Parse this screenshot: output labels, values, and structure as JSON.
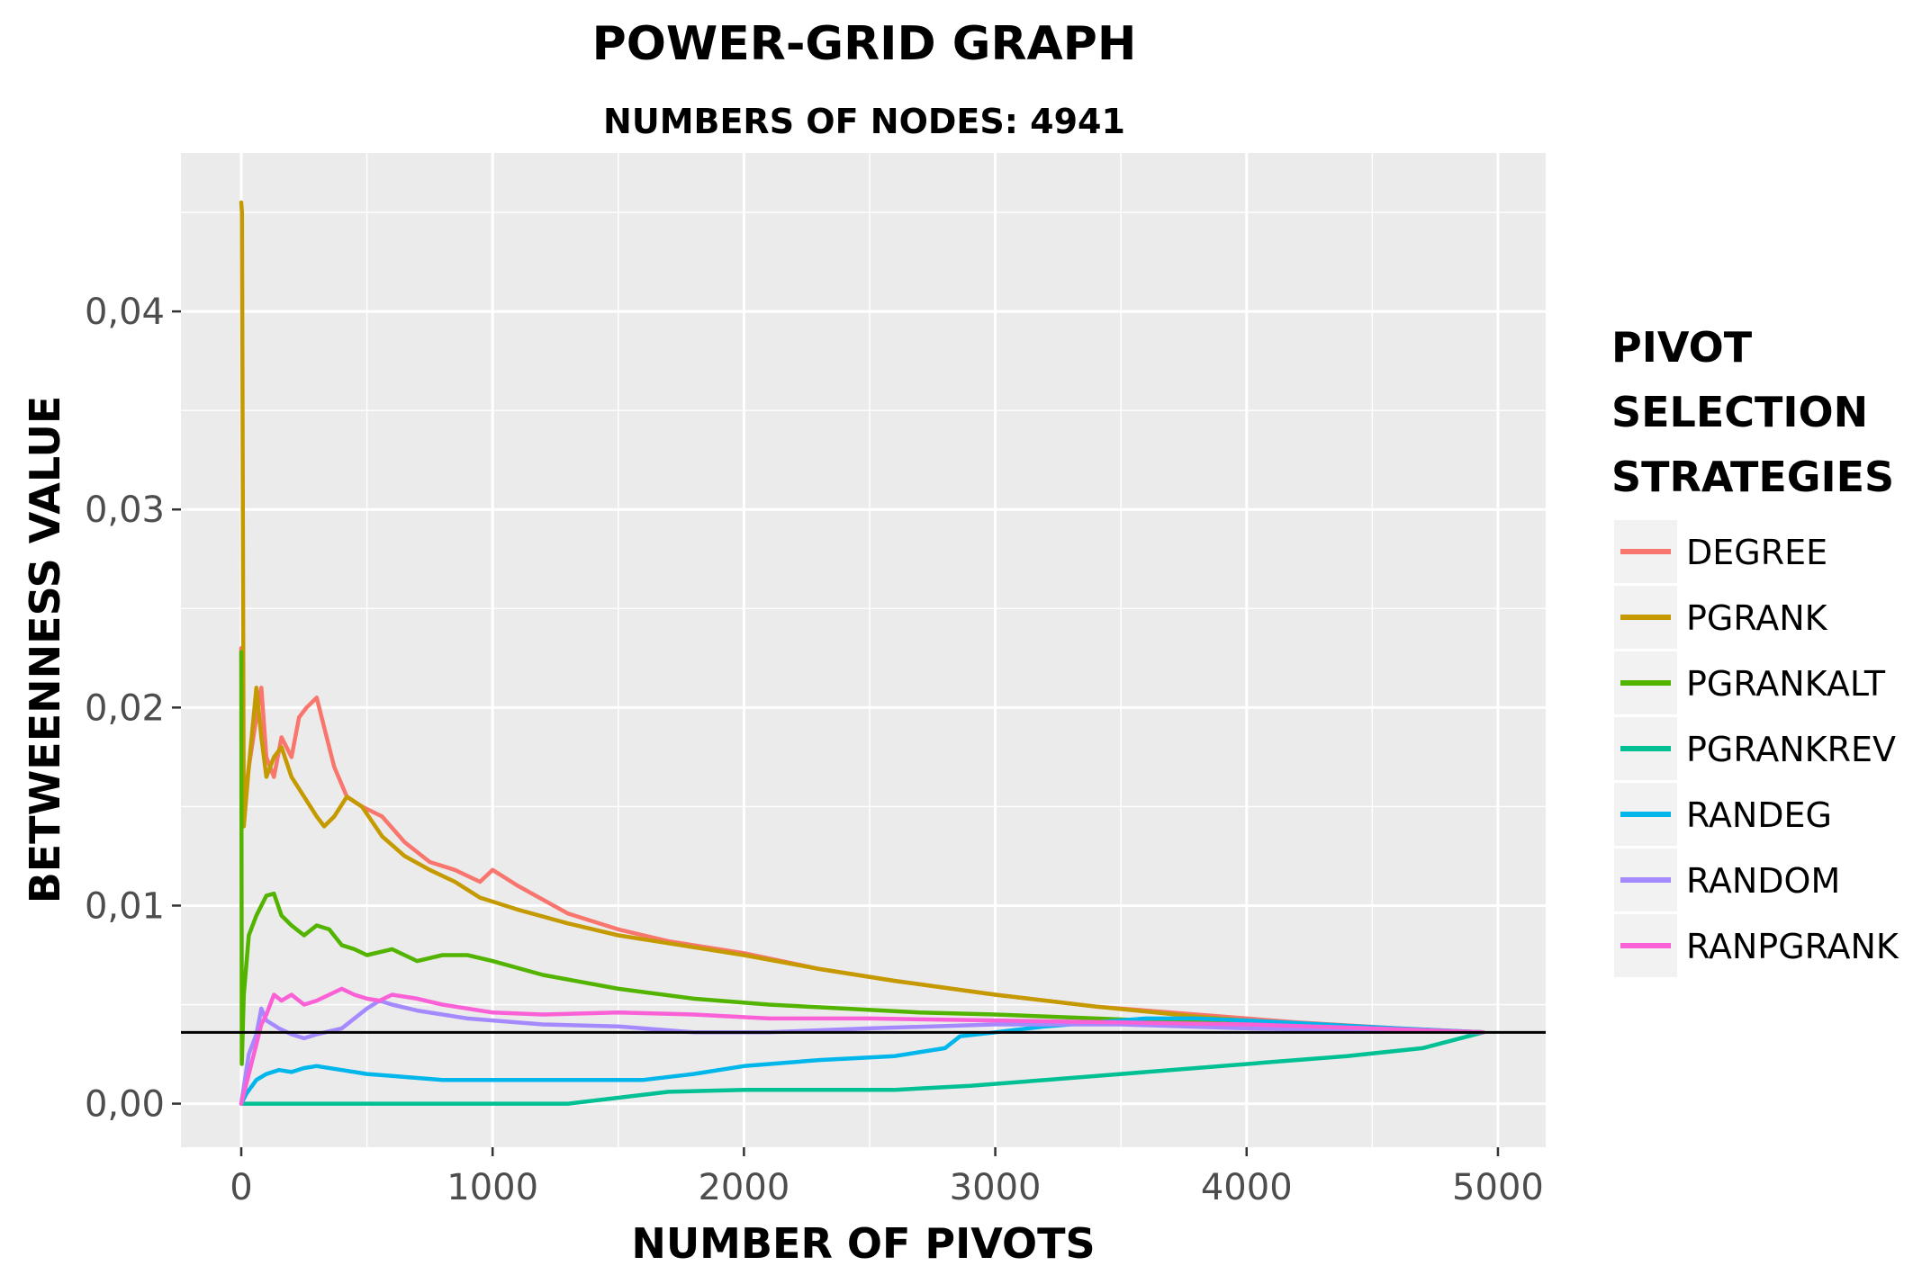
{
  "chart_data": {
    "type": "line",
    "title": "POWER-GRID GRAPH",
    "subtitle": "NUMBERS OF NODES: 4941",
    "xlabel": "NUMBER OF PIVOTS",
    "ylabel": "BETWEENNESS VALUE",
    "xlim": [
      -240,
      5190
    ],
    "ylim": [
      -0.0022,
      0.048
    ],
    "x_ticks": [
      0,
      1000,
      2000,
      3000,
      4000,
      5000
    ],
    "x_tick_labels": [
      "0",
      "1000",
      "2000",
      "3000",
      "4000",
      "5000"
    ],
    "y_ticks": [
      0.0,
      0.01,
      0.02,
      0.03,
      0.04
    ],
    "y_tick_labels": [
      "0,00",
      "0,01",
      "0,02",
      "0,03",
      "0,04"
    ],
    "grid": true,
    "legend_position": "right",
    "legend_title": "PIVOT SELECTION STRATEGIES",
    "reference_line": {
      "y": 0.0036
    },
    "series": [
      {
        "name": "DEGREE",
        "color": "#F8766D",
        "x": [
          0,
          10,
          30,
          60,
          80,
          100,
          130,
          160,
          200,
          230,
          260,
          300,
          330,
          370,
          420,
          480,
          560,
          650,
          750,
          850,
          950,
          1000,
          1100,
          1300,
          1500,
          1700,
          2000,
          2300,
          2600,
          3000,
          3400,
          3800,
          4200,
          4600,
          4941
        ],
        "y": [
          0.023,
          0.015,
          0.017,
          0.0195,
          0.021,
          0.0175,
          0.0165,
          0.0185,
          0.0175,
          0.0195,
          0.02,
          0.0205,
          0.019,
          0.017,
          0.0155,
          0.015,
          0.0145,
          0.0132,
          0.0122,
          0.0118,
          0.0112,
          0.0118,
          0.011,
          0.0096,
          0.0088,
          0.0082,
          0.0076,
          0.0068,
          0.0062,
          0.0055,
          0.0049,
          0.0045,
          0.0041,
          0.0038,
          0.0036
        ]
      },
      {
        "name": "PGRANK",
        "color": "#C49A00",
        "x": [
          0,
          3,
          10,
          30,
          60,
          80,
          100,
          130,
          160,
          200,
          250,
          300,
          330,
          370,
          420,
          480,
          560,
          650,
          750,
          850,
          950,
          1100,
          1300,
          1500,
          1700,
          2000,
          2300,
          2600,
          3000,
          3400,
          3800,
          4200,
          4600,
          4941
        ],
        "y": [
          0.0455,
          0.045,
          0.014,
          0.017,
          0.021,
          0.0185,
          0.0165,
          0.0175,
          0.018,
          0.0165,
          0.0155,
          0.0145,
          0.014,
          0.0145,
          0.0155,
          0.015,
          0.0135,
          0.0125,
          0.0118,
          0.0112,
          0.0104,
          0.0098,
          0.0091,
          0.0085,
          0.0081,
          0.0075,
          0.0068,
          0.0062,
          0.0055,
          0.0049,
          0.0044,
          0.004,
          0.0037,
          0.0036
        ]
      },
      {
        "name": "PGRANKALT",
        "color": "#53B400",
        "x": [
          0,
          2,
          10,
          30,
          60,
          100,
          130,
          160,
          200,
          250,
          300,
          350,
          400,
          450,
          500,
          600,
          700,
          800,
          900,
          1000,
          1200,
          1500,
          1800,
          2100,
          2400,
          2700,
          3000,
          3400,
          3800,
          4200,
          4600,
          4941
        ],
        "y": [
          0.0228,
          0.002,
          0.0055,
          0.0085,
          0.0095,
          0.0105,
          0.0106,
          0.0095,
          0.009,
          0.0085,
          0.009,
          0.0088,
          0.008,
          0.0078,
          0.0075,
          0.0078,
          0.0072,
          0.0075,
          0.0075,
          0.0072,
          0.0065,
          0.0058,
          0.0053,
          0.005,
          0.0048,
          0.0046,
          0.0045,
          0.0043,
          0.0041,
          0.0039,
          0.0037,
          0.0036
        ]
      },
      {
        "name": "PGRANKREV",
        "color": "#00C094",
        "x": [
          0,
          500,
          1000,
          1300,
          1500,
          1700,
          2000,
          2300,
          2600,
          2900,
          3200,
          3500,
          3800,
          4100,
          4400,
          4700,
          4941
        ],
        "y": [
          0.0,
          0.0,
          0.0,
          0.0,
          0.0003,
          0.0006,
          0.0007,
          0.0007,
          0.0007,
          0.0009,
          0.0012,
          0.0015,
          0.0018,
          0.0021,
          0.0024,
          0.0028,
          0.0036
        ]
      },
      {
        "name": "RANDEG",
        "color": "#00B6EB",
        "x": [
          0,
          20,
          60,
          100,
          150,
          200,
          250,
          300,
          400,
          500,
          600,
          700,
          800,
          900,
          1000,
          1300,
          1600,
          1800,
          2000,
          2300,
          2600,
          2800,
          2860,
          3000,
          3200,
          3400,
          3600,
          3800,
          4000,
          4300,
          4600,
          4941
        ],
        "y": [
          0.0,
          0.0005,
          0.0012,
          0.0015,
          0.0017,
          0.0016,
          0.0018,
          0.0019,
          0.0017,
          0.0015,
          0.0014,
          0.0013,
          0.0012,
          0.0012,
          0.0012,
          0.0012,
          0.0012,
          0.0015,
          0.0019,
          0.0022,
          0.0024,
          0.0028,
          0.0034,
          0.0036,
          0.0039,
          0.0041,
          0.0043,
          0.0043,
          0.0042,
          0.004,
          0.0038,
          0.0036
        ]
      },
      {
        "name": "RANDOM",
        "color": "#A58AFF",
        "x": [
          0,
          30,
          60,
          80,
          100,
          150,
          200,
          250,
          300,
          400,
          500,
          550,
          600,
          700,
          800,
          900,
          1000,
          1200,
          1500,
          1800,
          2100,
          2500,
          3000,
          3500,
          4000,
          4500,
          4941
        ],
        "y": [
          0.0,
          0.0025,
          0.0035,
          0.0048,
          0.0042,
          0.0038,
          0.0035,
          0.0033,
          0.0035,
          0.0038,
          0.0048,
          0.0052,
          0.005,
          0.0047,
          0.0045,
          0.0043,
          0.0042,
          0.004,
          0.0039,
          0.0036,
          0.0036,
          0.0038,
          0.004,
          0.004,
          0.0038,
          0.0037,
          0.0036
        ]
      },
      {
        "name": "RANPGRANK",
        "color": "#FB61D7",
        "x": [
          0,
          30,
          60,
          80,
          100,
          130,
          160,
          200,
          250,
          300,
          350,
          400,
          450,
          500,
          550,
          600,
          700,
          800,
          900,
          1000,
          1200,
          1500,
          1800,
          2100,
          2500,
          3000,
          3500,
          4000,
          4500,
          4941
        ],
        "y": [
          0.0,
          0.0015,
          0.003,
          0.004,
          0.0045,
          0.0055,
          0.0052,
          0.0055,
          0.005,
          0.0052,
          0.0055,
          0.0058,
          0.0055,
          0.0053,
          0.0052,
          0.0055,
          0.0053,
          0.005,
          0.0048,
          0.0046,
          0.0045,
          0.0046,
          0.0045,
          0.0043,
          0.0043,
          0.0042,
          0.0041,
          0.004,
          0.0038,
          0.0036
        ]
      }
    ]
  }
}
